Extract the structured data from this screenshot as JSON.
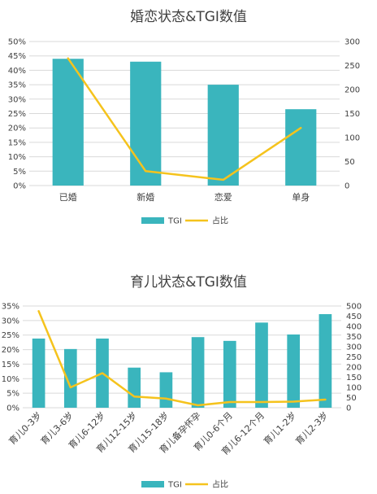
{
  "chart_data": [
    {
      "type": "bar",
      "title": "婚恋状态&TGI数值",
      "categories": [
        "已婚",
        "新婚",
        "恋爱",
        "单身"
      ],
      "series": [
        {
          "name": "TGI",
          "type": "bar",
          "axis": "left",
          "color": "#3ab5bd",
          "values": [
            0.44,
            0.43,
            0.35,
            0.265
          ]
        },
        {
          "name": "占比",
          "type": "line",
          "axis": "right",
          "color": "#f5c31d",
          "values": [
            265,
            30,
            12,
            120
          ]
        }
      ],
      "y_left": {
        "min": 0,
        "max": 0.5,
        "step": 0.05,
        "format": "percent"
      },
      "y_right": {
        "min": 0,
        "max": 300,
        "step": 50
      },
      "legend": "bottom"
    },
    {
      "type": "bar",
      "title": "育儿状态&TGI数值",
      "categories": [
        "育儿0-3岁",
        "育儿3-6岁",
        "育儿6-12岁",
        "育儿12-15岁",
        "育儿15-18岁",
        "育儿备孕怀孕",
        "育儿0-6个月",
        "育儿6-12个月",
        "育儿1-2岁",
        "育儿2-3岁"
      ],
      "series": [
        {
          "name": "TGI",
          "type": "bar",
          "axis": "left",
          "color": "#3ab5bd",
          "values": [
            0.238,
            0.202,
            0.238,
            0.138,
            0.122,
            0.243,
            0.23,
            0.293,
            0.252,
            0.322
          ]
        },
        {
          "name": "占比",
          "type": "line",
          "axis": "right",
          "color": "#f5c31d",
          "values": [
            475,
            100,
            170,
            55,
            45,
            12,
            28,
            28,
            30,
            40
          ]
        }
      ],
      "y_left": {
        "min": 0,
        "max": 0.35,
        "step": 0.05,
        "format": "percent"
      },
      "y_right": {
        "min": 0,
        "max": 500,
        "step": 50
      },
      "legend": "bottom"
    }
  ]
}
